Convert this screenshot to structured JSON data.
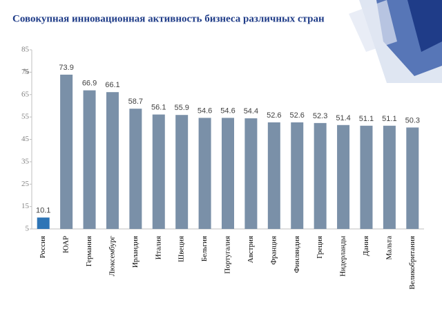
{
  "chart_data": {
    "type": "bar",
    "title": "Совокупная инновационная активность бизнеса различных стран",
    "y_label": "%",
    "categories": [
      "Россия",
      "ЮАР",
      "Германия",
      "Люксембург",
      "Ирландия",
      "Италия",
      "Швеция",
      "Бельгия",
      "Португалия",
      "Австрия",
      "Франция",
      "Финляндия",
      "Греция",
      "Нидерланды",
      "Дания",
      "Мальта",
      "Великобритания"
    ],
    "values": [
      10.1,
      73.9,
      66.9,
      66.1,
      58.7,
      56.1,
      55.9,
      54.6,
      54.6,
      54.4,
      52.6,
      52.6,
      52.3,
      51.4,
      51.1,
      51.1,
      50.3
    ],
    "colors": [
      "#2e75b6",
      "#7a90a8",
      "#7a90a8",
      "#7a90a8",
      "#7a90a8",
      "#7a90a8",
      "#7a90a8",
      "#7a90a8",
      "#7a90a8",
      "#7a90a8",
      "#7a90a8",
      "#7a90a8",
      "#7a90a8",
      "#7a90a8",
      "#7a90a8",
      "#7a90a8",
      "#7a90a8"
    ],
    "ylim": [
      5,
      85
    ],
    "yticks": [
      5,
      15,
      25,
      35,
      45,
      55,
      65,
      75,
      85
    ]
  }
}
